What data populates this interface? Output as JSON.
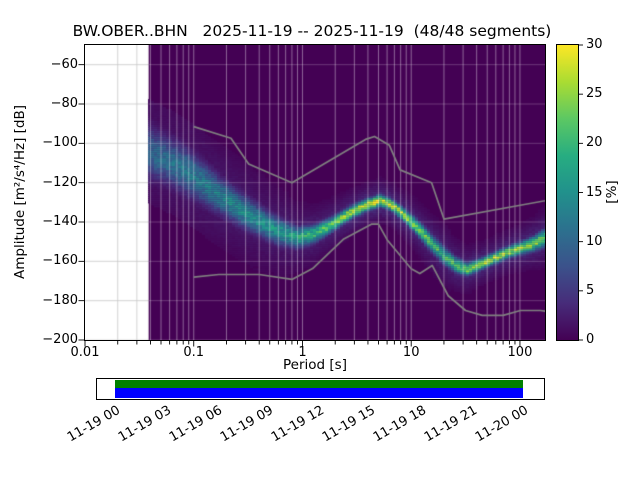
{
  "chart_data": {
    "type": "heatmap",
    "title": "BW.OBER..BHN   2025-11-19 -- 2025-11-19  (48/48 segments)",
    "xlabel": "Period [s]",
    "ylabel": "Amplitude [m²/s⁴/Hz] [dB]",
    "colorbar_label": "[%]",
    "x_scale": "log",
    "xlim": [
      0.01,
      170
    ],
    "ylim": [
      -200,
      -50
    ],
    "clim": [
      0,
      30
    ],
    "grid": true,
    "x_ticks": [
      0.01,
      0.1,
      1,
      10,
      100
    ],
    "x_tick_labels": [
      "0.01",
      "0.1",
      "1",
      "10",
      "100"
    ],
    "y_ticks": [
      -60,
      -80,
      -100,
      -120,
      -140,
      -160,
      -180,
      -200
    ],
    "y_tick_labels": [
      "−60",
      "−80",
      "−100",
      "−120",
      "−140",
      "−160",
      "−180",
      "−200"
    ],
    "colorbar_ticks": [
      0,
      5,
      10,
      15,
      20,
      25,
      30
    ],
    "colormap": "viridis",
    "colormap_stops": [
      [
        0,
        68,
        1,
        84
      ],
      [
        0.13,
        71,
        44,
        122
      ],
      [
        0.25,
        59,
        81,
        139
      ],
      [
        0.38,
        44,
        113,
        142
      ],
      [
        0.5,
        33,
        144,
        141
      ],
      [
        0.63,
        39,
        173,
        129
      ],
      [
        0.75,
        92,
        200,
        99
      ],
      [
        0.88,
        170,
        220,
        50
      ],
      [
        1,
        253,
        231,
        37
      ]
    ],
    "background_color": "#440154",
    "data_period_start": 0.0385,
    "ppsd_ridge_format": "[period_s, mode_db, peak_percent, halfwidth_db]",
    "ppsd_ridge": [
      [
        0.0385,
        -104,
        10,
        9
      ],
      [
        0.055,
        -108,
        11,
        8
      ],
      [
        0.08,
        -113,
        12,
        8
      ],
      [
        0.12,
        -120,
        13,
        7
      ],
      [
        0.18,
        -127,
        14,
        6
      ],
      [
        0.28,
        -134,
        15,
        5.5
      ],
      [
        0.42,
        -140,
        15,
        5
      ],
      [
        0.62,
        -145,
        16,
        4.5
      ],
      [
        0.9,
        -148,
        18,
        3.5
      ],
      [
        1.3,
        -146,
        20,
        3
      ],
      [
        1.9,
        -141,
        22,
        2.5
      ],
      [
        2.8,
        -135,
        26,
        2.2
      ],
      [
        4.0,
        -131,
        29,
        2
      ],
      [
        5.2,
        -129,
        30,
        2
      ],
      [
        6.5,
        -131,
        28,
        2
      ],
      [
        8.5,
        -136,
        26,
        2.2
      ],
      [
        11,
        -142,
        24,
        2.5
      ],
      [
        15,
        -150,
        22,
        2.8
      ],
      [
        20,
        -157,
        20,
        3
      ],
      [
        26,
        -162,
        22,
        2.6
      ],
      [
        33,
        -164,
        24,
        2.2
      ],
      [
        45,
        -161,
        26,
        2
      ],
      [
        60,
        -158,
        26,
        2
      ],
      [
        80,
        -155,
        26,
        2
      ],
      [
        105,
        -153,
        25,
        2.2
      ],
      [
        135,
        -151,
        24,
        2.5
      ],
      [
        170,
        -148,
        22,
        3
      ]
    ],
    "noise_models": {
      "nhnm": [
        [
          0.1,
          -91.5
        ],
        [
          0.22,
          -97.4
        ],
        [
          0.32,
          -110.5
        ],
        [
          0.8,
          -120.0
        ],
        [
          3.8,
          -98.0
        ],
        [
          4.6,
          -96.5
        ],
        [
          6.3,
          -101.0
        ],
        [
          7.9,
          -113.5
        ],
        [
          15.4,
          -120.0
        ],
        [
          20.0,
          -138.5
        ],
        [
          354.8,
          -126.0
        ]
      ],
      "nlnm": [
        [
          0.1,
          -168.0
        ],
        [
          0.17,
          -166.7
        ],
        [
          0.4,
          -166.7
        ],
        [
          0.8,
          -169.2
        ],
        [
          1.24,
          -163.7
        ],
        [
          2.4,
          -148.6
        ],
        [
          4.3,
          -141.1
        ],
        [
          5.0,
          -141.1
        ],
        [
          6.0,
          -149.0
        ],
        [
          10.0,
          -163.8
        ],
        [
          12.0,
          -166.2
        ],
        [
          15.6,
          -162.1
        ],
        [
          21.9,
          -177.5
        ],
        [
          31.6,
          -185.0
        ],
        [
          45.0,
          -187.5
        ],
        [
          70.0,
          -187.5
        ],
        [
          101.0,
          -185.0
        ],
        [
          154.0,
          -185.0
        ],
        [
          328.0,
          -187.5
        ]
      ]
    },
    "noise_model_color": "#808080",
    "timeline": {
      "tick_labels": [
        "11-19 00",
        "11-19 03",
        "11-19 06",
        "11-19 09",
        "11-19 12",
        "11-19 15",
        "11-19 18",
        "11-19 21",
        "11-20 00"
      ],
      "used_color": "#008000",
      "extent_color": "#0000ff"
    }
  }
}
